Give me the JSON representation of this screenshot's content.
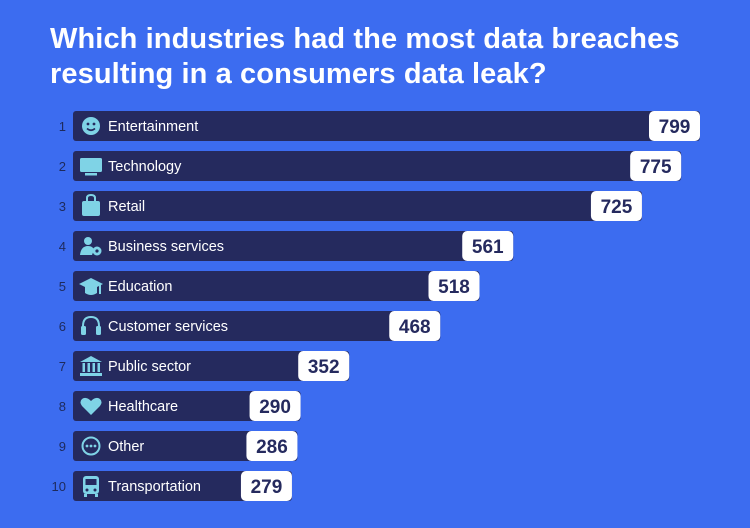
{
  "title": "Which industries had the most data breaches resulting in a consumers data leak?",
  "chart_data": {
    "type": "bar",
    "orientation": "horizontal",
    "title": "Which industries had the most data breaches resulting in a consumers data leak?",
    "xlim": [
      0,
      799
    ],
    "categories": [
      {
        "rank": "1",
        "label": "Entertainment",
        "value": 799,
        "icon": "smiley-icon"
      },
      {
        "rank": "2",
        "label": "Technology",
        "value": 775,
        "icon": "monitor-icon"
      },
      {
        "rank": "3",
        "label": "Retail",
        "value": 725,
        "icon": "shopping-bag-icon"
      },
      {
        "rank": "4",
        "label": "Business services",
        "value": 561,
        "icon": "user-gear-icon"
      },
      {
        "rank": "5",
        "label": "Education",
        "value": 518,
        "icon": "graduation-cap-icon"
      },
      {
        "rank": "6",
        "label": "Customer services",
        "value": 468,
        "icon": "headset-icon"
      },
      {
        "rank": "7",
        "label": "Public sector",
        "value": 352,
        "icon": "government-building-icon"
      },
      {
        "rank": "8",
        "label": "Healthcare",
        "value": 290,
        "icon": "heart-icon"
      },
      {
        "rank": "9",
        "label": "Other",
        "value": 286,
        "icon": "ellipsis-circle-icon"
      },
      {
        "rank": "10",
        "label": "Transportation",
        "value": 279,
        "icon": "bus-icon"
      }
    ]
  },
  "colors": {
    "background": "#3c6cf0",
    "bar": "#252a5e",
    "value_box": "#ffffff",
    "icon": "#7fd3e6",
    "rank_text": "#1e2a5c"
  }
}
